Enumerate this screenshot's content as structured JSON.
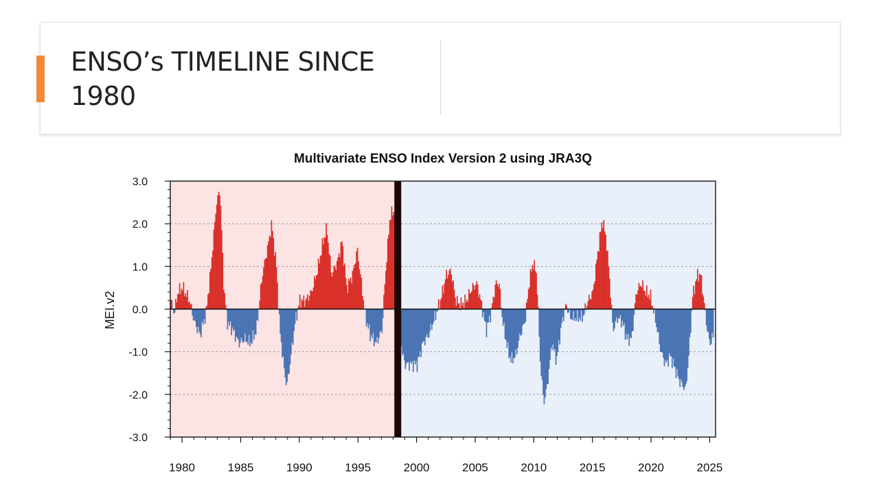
{
  "slide": {
    "title_line1": "ENSO’s TIMELINE SINCE",
    "title_line2": "1980",
    "accent_color": "#ef8a3c"
  },
  "chart_data": {
    "type": "bar",
    "title": "Multivariate ENSO Index Version 2 using JRA3Q",
    "xlabel": "",
    "ylabel": "MEI.v2",
    "xlim": [
      1979,
      2025.5
    ],
    "ylim": [
      -3.0,
      3.0
    ],
    "x_ticks": [
      1980,
      1985,
      1990,
      1995,
      2000,
      2005,
      2010,
      2015,
      2020,
      2025
    ],
    "y_ticks": [
      -3.0,
      -2.0,
      -1.0,
      0.0,
      1.0,
      2.0,
      3.0
    ],
    "y_tick_labels": [
      "-3.0",
      "-2.0",
      "-1.0",
      "0.0",
      "1.0",
      "2.0",
      "3.0"
    ],
    "grid": "horizontal dashed",
    "positive_color": "#d9312a",
    "negative_color": "#4a74b4",
    "shaded_periods": [
      {
        "start": 1979,
        "end": 1998.2,
        "color": "#fde4e4"
      },
      {
        "start": 1998.6,
        "end": 2025.5,
        "color": "#eaf0fa"
      }
    ],
    "divider": {
      "x": 1998.4,
      "color": "#1a0606"
    },
    "series": [
      {
        "name": "MEI.v2",
        "resolution": "monthly",
        "anchors": [
          [
            1979.0,
            0.2
          ],
          [
            1979.3,
            -0.1
          ],
          [
            1979.6,
            0.4
          ],
          [
            1980.0,
            0.5
          ],
          [
            1980.6,
            0.2
          ],
          [
            1981.0,
            -0.3
          ],
          [
            1981.5,
            -0.6
          ],
          [
            1982.0,
            -0.1
          ],
          [
            1982.4,
            0.9
          ],
          [
            1982.9,
            2.5
          ],
          [
            1983.2,
            2.8
          ],
          [
            1983.5,
            0.6
          ],
          [
            1983.8,
            -0.3
          ],
          [
            1984.3,
            -0.5
          ],
          [
            1984.8,
            -0.8
          ],
          [
            1985.3,
            -0.7
          ],
          [
            1985.8,
            -0.8
          ],
          [
            1986.3,
            -0.5
          ],
          [
            1986.8,
            0.8
          ],
          [
            1987.3,
            1.5
          ],
          [
            1987.6,
            2.0
          ],
          [
            1988.0,
            1.0
          ],
          [
            1988.3,
            -0.5
          ],
          [
            1988.7,
            -1.5
          ],
          [
            1988.9,
            -1.8
          ],
          [
            1989.2,
            -1.2
          ],
          [
            1989.6,
            -0.3
          ],
          [
            1990.0,
            0.2
          ],
          [
            1990.5,
            0.2
          ],
          [
            1991.0,
            0.4
          ],
          [
            1991.5,
            0.9
          ],
          [
            1992.0,
            1.6
          ],
          [
            1992.3,
            1.9
          ],
          [
            1992.7,
            0.8
          ],
          [
            1993.2,
            1.1
          ],
          [
            1993.6,
            1.6
          ],
          [
            1994.0,
            0.5
          ],
          [
            1994.5,
            0.8
          ],
          [
            1994.9,
            1.4
          ],
          [
            1995.3,
            0.5
          ],
          [
            1995.6,
            -0.2
          ],
          [
            1996.0,
            -0.6
          ],
          [
            1996.5,
            -0.8
          ],
          [
            1997.0,
            -0.5
          ],
          [
            1997.3,
            0.8
          ],
          [
            1997.7,
            2.2
          ],
          [
            1998.1,
            2.3
          ],
          [
            1998.7,
            -1.0
          ],
          [
            1999.0,
            -1.3
          ],
          [
            1999.5,
            -1.3
          ],
          [
            2000.0,
            -1.3
          ],
          [
            2000.5,
            -0.8
          ],
          [
            2001.0,
            -0.6
          ],
          [
            2001.5,
            -0.2
          ],
          [
            2002.0,
            0.2
          ],
          [
            2002.5,
            0.8
          ],
          [
            2002.9,
            0.9
          ],
          [
            2003.3,
            0.2
          ],
          [
            2003.7,
            0.1
          ],
          [
            2004.2,
            0.2
          ],
          [
            2004.7,
            0.5
          ],
          [
            2005.1,
            0.6
          ],
          [
            2005.5,
            0.1
          ],
          [
            2005.9,
            -0.5
          ],
          [
            2006.3,
            -0.1
          ],
          [
            2006.7,
            0.6
          ],
          [
            2007.0,
            0.6
          ],
          [
            2007.3,
            -0.3
          ],
          [
            2007.7,
            -0.9
          ],
          [
            2008.0,
            -1.2
          ],
          [
            2008.4,
            -1.1
          ],
          [
            2008.8,
            -0.6
          ],
          [
            2009.2,
            -0.3
          ],
          [
            2009.6,
            0.7
          ],
          [
            2009.9,
            1.1
          ],
          [
            2010.2,
            0.8
          ],
          [
            2010.5,
            -1.2
          ],
          [
            2010.8,
            -2.2
          ],
          [
            2011.1,
            -1.8
          ],
          [
            2011.5,
            -0.8
          ],
          [
            2011.9,
            -1.2
          ],
          [
            2012.3,
            -0.4
          ],
          [
            2012.7,
            0.1
          ],
          [
            2013.1,
            -0.2
          ],
          [
            2013.6,
            -0.2
          ],
          [
            2014.1,
            -0.2
          ],
          [
            2014.6,
            0.2
          ],
          [
            2015.0,
            0.4
          ],
          [
            2015.4,
            1.3
          ],
          [
            2015.8,
            2.1
          ],
          [
            2016.1,
            1.7
          ],
          [
            2016.4,
            0.8
          ],
          [
            2016.7,
            -0.5
          ],
          [
            2017.1,
            -0.2
          ],
          [
            2017.5,
            -0.3
          ],
          [
            2017.9,
            -0.7
          ],
          [
            2018.3,
            -0.7
          ],
          [
            2018.7,
            0.4
          ],
          [
            2019.1,
            0.6
          ],
          [
            2019.5,
            0.4
          ],
          [
            2019.9,
            0.3
          ],
          [
            2020.3,
            -0.2
          ],
          [
            2020.8,
            -1.0
          ],
          [
            2021.2,
            -1.3
          ],
          [
            2021.6,
            -1.1
          ],
          [
            2022.0,
            -1.4
          ],
          [
            2022.4,
            -1.7
          ],
          [
            2022.7,
            -1.8
          ],
          [
            2022.9,
            -1.9
          ],
          [
            2023.2,
            -1.0
          ],
          [
            2023.5,
            0.3
          ],
          [
            2023.9,
            0.8
          ],
          [
            2024.2,
            0.8
          ],
          [
            2024.5,
            0.1
          ],
          [
            2024.8,
            -0.6
          ],
          [
            2025.0,
            -0.8
          ],
          [
            2025.3,
            -0.6
          ]
        ]
      }
    ]
  }
}
